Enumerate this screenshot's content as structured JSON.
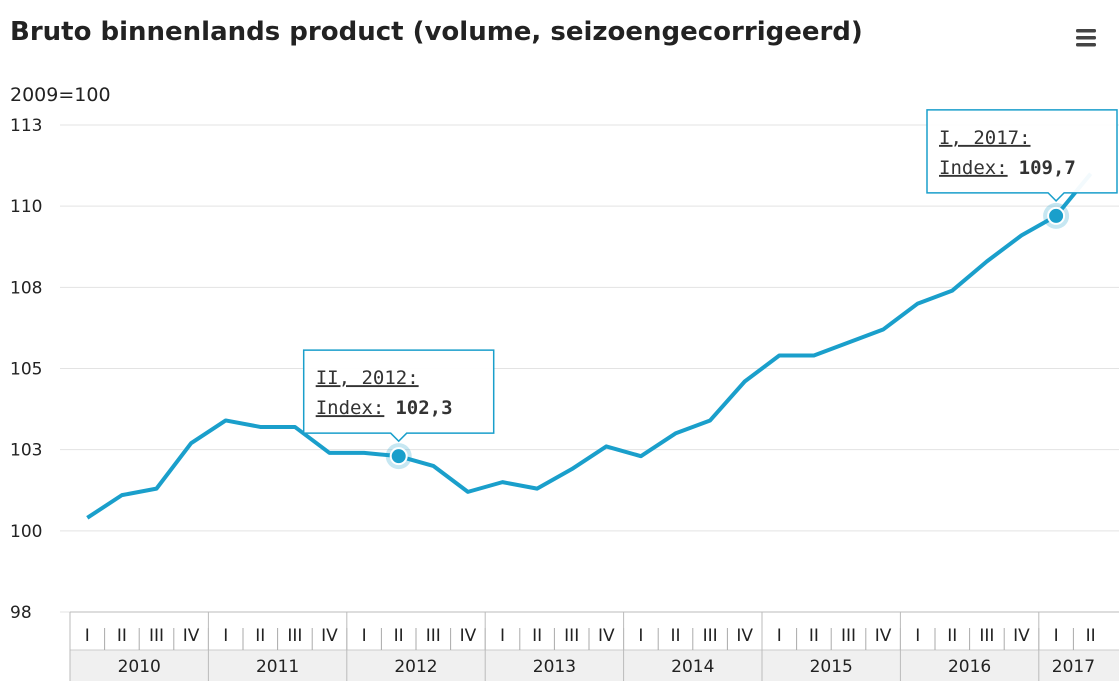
{
  "chart_data": {
    "type": "line",
    "title": "Bruto binnenlands product (volume, seizoengecorrigeerd)",
    "y_label": "2009=100",
    "color": "#1a9fcb",
    "categories": [
      "I",
      "II",
      "III",
      "IV",
      "I",
      "II",
      "III",
      "IV",
      "I",
      "II",
      "III",
      "IV",
      "I",
      "II",
      "III",
      "IV",
      "I",
      "II",
      "III",
      "IV",
      "I",
      "II",
      "III",
      "IV",
      "I",
      "II",
      "III",
      "IV",
      "I",
      "II"
    ],
    "x_groups": [
      "2010",
      "2011",
      "2012",
      "2013",
      "2014",
      "2015",
      "2016",
      "2017"
    ],
    "values": [
      100.4,
      101.1,
      101.3,
      102.7,
      103.4,
      103.2,
      103.2,
      102.4,
      102.4,
      102.3,
      102.0,
      101.2,
      101.5,
      101.3,
      101.9,
      102.6,
      102.3,
      103.0,
      103.4,
      104.6,
      105.4,
      105.4,
      105.8,
      106.2,
      107.0,
      107.4,
      108.3,
      109.1,
      109.7,
      111.0
    ],
    "ylim": [
      97.5,
      112.5
    ],
    "yticks": [
      {
        "value": 97.5,
        "label": "98"
      },
      100,
      {
        "value": 102.5,
        "label": "103"
      },
      105,
      {
        "value": 107.5,
        "label": "108"
      },
      110,
      {
        "value": 112.5,
        "label": "113"
      }
    ],
    "grid": true,
    "tooltips": [
      {
        "label": "II, 2012:",
        "name": "Index:",
        "value_label": "102,3"
      },
      {
        "label": "I, 2017:",
        "name": "Index:",
        "value_label": "109,7"
      }
    ]
  }
}
